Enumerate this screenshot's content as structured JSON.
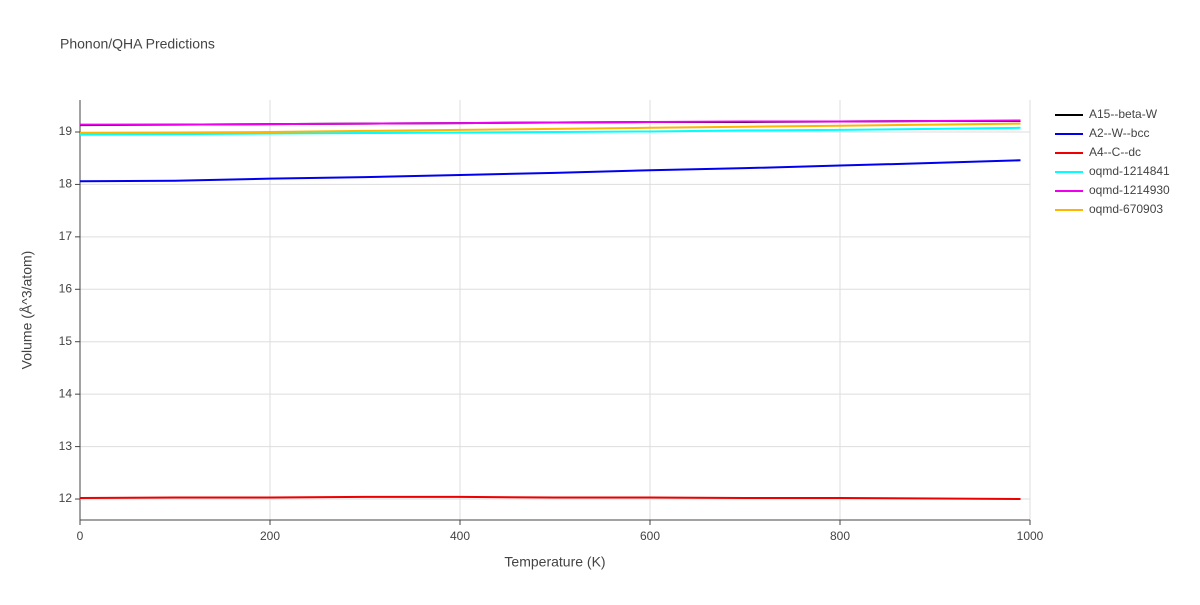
{
  "chart_data": {
    "type": "line",
    "title": "Phonon/QHA Predictions",
    "x_label": "Temperature (K)",
    "y_label": "Volume (Å^3/atom)",
    "x": [
      0,
      100,
      200,
      300,
      400,
      500,
      600,
      700,
      800,
      900,
      990
    ],
    "xlim": [
      0,
      1000
    ],
    "xticks": [
      0,
      200,
      400,
      600,
      800,
      1000
    ],
    "ylim": [
      11.6,
      19.61
    ],
    "yticks": [
      12,
      13,
      14,
      15,
      16,
      17,
      18,
      19
    ],
    "grid": true,
    "legend": "right",
    "series": [
      {
        "name": "A15--beta-W",
        "color": "#000000",
        "values": [
          19.13,
          19.14,
          19.15,
          19.16,
          19.17,
          19.18,
          19.19,
          19.19,
          19.2,
          19.21,
          19.21
        ]
      },
      {
        "name": "A2--W--bcc",
        "color": "#0000ee",
        "values": [
          18.06,
          18.07,
          18.11,
          18.14,
          18.18,
          18.22,
          18.27,
          18.31,
          18.36,
          18.41,
          18.46
        ]
      },
      {
        "name": "A4--C--dc",
        "color": "#ee0000",
        "values": [
          12.02,
          12.03,
          12.03,
          12.04,
          12.04,
          12.03,
          12.03,
          12.02,
          12.02,
          12.01,
          12.0
        ]
      },
      {
        "name": "oqmd-1214841",
        "color": "#00ffff",
        "values": [
          18.95,
          18.96,
          18.97,
          18.98,
          18.99,
          19.0,
          19.01,
          19.03,
          19.04,
          19.06,
          19.08
        ]
      },
      {
        "name": "oqmd-1214930",
        "color": "#ee00ee",
        "values": [
          19.14,
          19.14,
          19.15,
          19.16,
          19.17,
          19.18,
          19.19,
          19.2,
          19.2,
          19.21,
          19.22
        ]
      },
      {
        "name": "oqmd-670903",
        "color": "#ffb400",
        "values": [
          18.98,
          18.99,
          19.0,
          19.02,
          19.04,
          19.06,
          19.08,
          19.1,
          19.12,
          19.14,
          19.16
        ]
      }
    ]
  }
}
